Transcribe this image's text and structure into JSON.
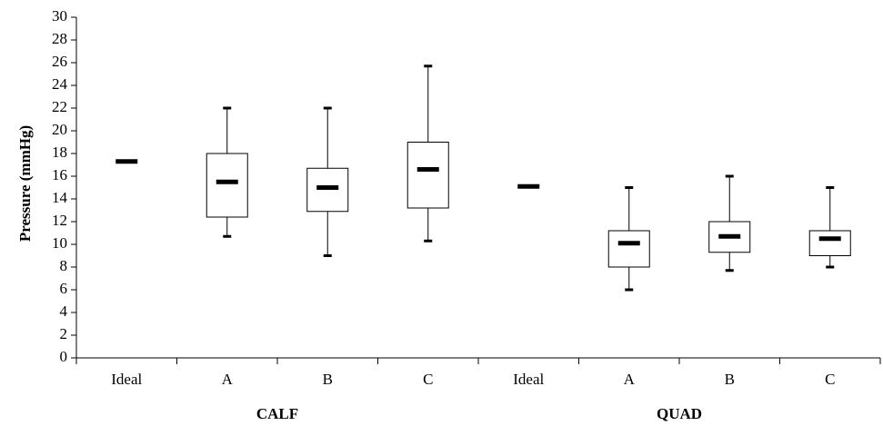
{
  "chart_data": {
    "type": "box",
    "ylabel": "Pressure (mmHg)",
    "ylim": [
      0,
      30
    ],
    "yticks": [
      0,
      2,
      4,
      6,
      8,
      10,
      12,
      14,
      16,
      18,
      20,
      22,
      24,
      26,
      28,
      30
    ],
    "grid": false,
    "groups": [
      "CALF",
      "QUAD"
    ],
    "categories": [
      {
        "label": "Ideal",
        "group": "CALF",
        "median": 17.3
      },
      {
        "label": "A",
        "group": "CALF",
        "min": 10.7,
        "q1": 12.4,
        "median": 15.5,
        "q3": 18.0,
        "max": 22.0
      },
      {
        "label": "B",
        "group": "CALF",
        "min": 9.0,
        "q1": 12.9,
        "median": 15.0,
        "q3": 16.7,
        "max": 22.0
      },
      {
        "label": "C",
        "group": "CALF",
        "min": 10.3,
        "q1": 13.2,
        "median": 16.6,
        "q3": 19.0,
        "max": 25.7
      },
      {
        "label": "Ideal",
        "group": "QUAD",
        "median": 15.1
      },
      {
        "label": "A",
        "group": "QUAD",
        "min": 6.0,
        "q1": 8.0,
        "median": 10.1,
        "q3": 11.2,
        "max": 15.0
      },
      {
        "label": "B",
        "group": "QUAD",
        "min": 7.7,
        "q1": 9.3,
        "median": 10.7,
        "q3": 12.0,
        "max": 16.0
      },
      {
        "label": "C",
        "group": "QUAD",
        "min": 8.0,
        "q1": 9.0,
        "median": 10.5,
        "q3": 11.2,
        "max": 15.0
      }
    ]
  }
}
